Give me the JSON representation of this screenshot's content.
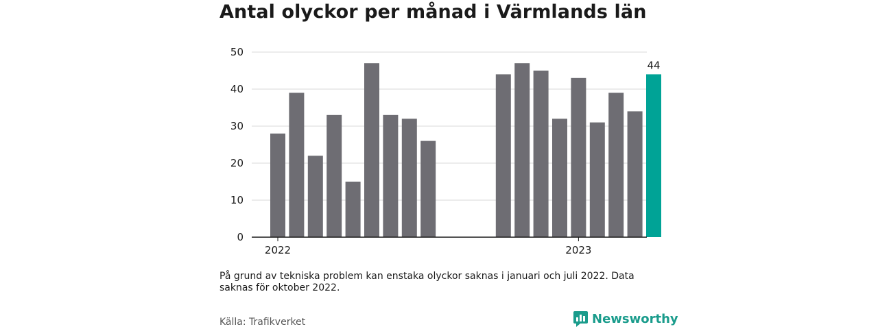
{
  "title": "Antal olyckor per månad i Värmlands län",
  "note": "På grund av tekniska problem kan enstaka olyckor saknas i januari och juli 2022. Data saknas för oktober 2022.",
  "source": "Källa: Trafikverket",
  "brand": {
    "name": "Newsworthy",
    "icon": "newsworthy-logo-icon",
    "color": "#1a9c8c"
  },
  "colors": {
    "bar": "#6e6d73",
    "highlight": "#00a396"
  },
  "chart_data": {
    "type": "bar",
    "title": "Antal olyckor per månad i Värmlands län",
    "xlabel": "",
    "ylabel": "",
    "ylim": [
      0,
      50
    ],
    "yticks": [
      0,
      10,
      20,
      30,
      40,
      50
    ],
    "grid": true,
    "x_tick_labels": [
      {
        "label": "2022",
        "at": "2022-01"
      },
      {
        "label": "2023",
        "at": "2023-05"
      }
    ],
    "categories": [
      "2022-01",
      "2022-02",
      "2022-03",
      "2022-04",
      "2022-05",
      "2022-06",
      "2022-07",
      "2022-08",
      "2022-09",
      "2022-10",
      "2022-11",
      "2022-12",
      "2023-01",
      "2023-02",
      "2023-03",
      "2023-04",
      "2023-05",
      "2023-06",
      "2023-07",
      "2023-08",
      "2023-09"
    ],
    "values": [
      28,
      39,
      22,
      33,
      15,
      47,
      33,
      32,
      26,
      null,
      null,
      null,
      44,
      47,
      45,
      32,
      43,
      31,
      39,
      34,
      44
    ],
    "highlight": {
      "category": "2023-09",
      "value": 44,
      "label": "44"
    }
  }
}
